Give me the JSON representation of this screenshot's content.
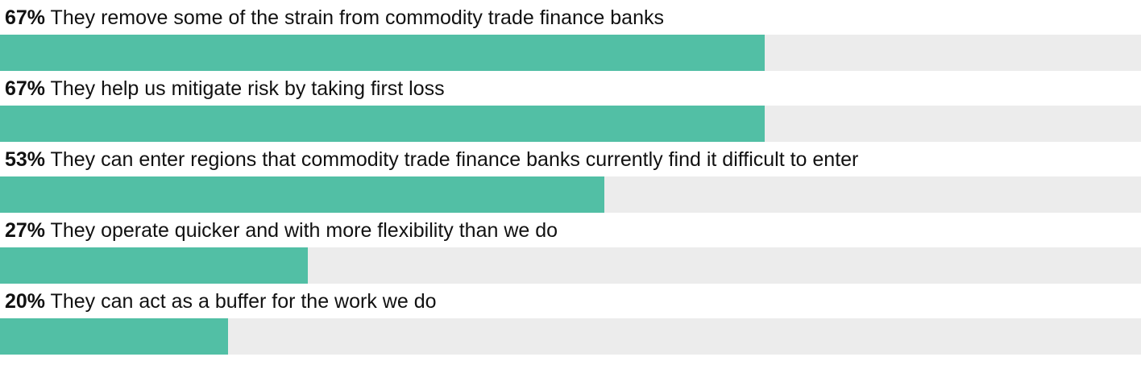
{
  "chart_data": {
    "type": "bar",
    "orientation": "horizontal",
    "categories": [
      "They remove some of the strain from commodity trade finance banks",
      "They help us mitigate risk by taking first loss",
      "They can enter regions that commodity trade finance banks currently find it difficult to enter",
      "They operate quicker and with more flexibility than we do",
      "They can act as a buffer for the work we do"
    ],
    "values": [
      67,
      67,
      53,
      27,
      20
    ],
    "value_labels": [
      "67%",
      "67%",
      "53%",
      "27%",
      "20%"
    ],
    "color": "#52bfa5",
    "track_color": "#ececec",
    "xlim": [
      0,
      100
    ]
  }
}
